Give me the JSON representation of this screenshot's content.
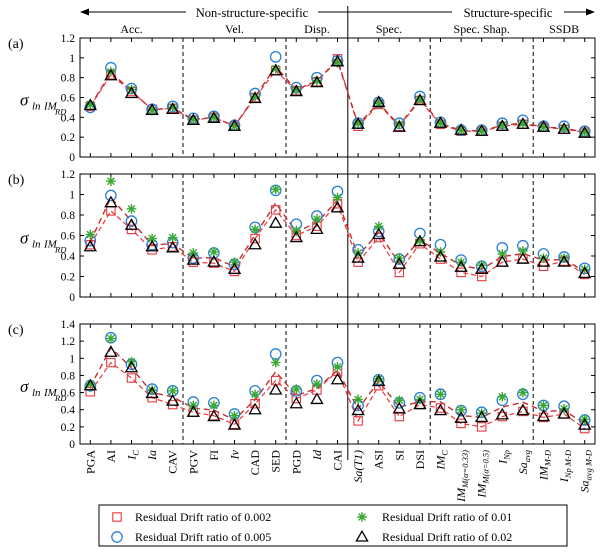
{
  "header": {
    "group_left": "Non-structure-specific",
    "group_right": "Structure-specific",
    "sections": [
      "Acc.",
      "Vel.",
      "Disp.",
      "Spec.",
      "Spec. Shap.",
      "SSDB"
    ]
  },
  "legend": {
    "items": [
      {
        "label": "Residual Drift ratio of 0.002",
        "marker": "square",
        "color": "#e8383d"
      },
      {
        "label": "Residual Drift ratio of 0.01",
        "marker": "star",
        "color": "#3aa832"
      },
      {
        "label": "Residual Drift ratio of 0.005",
        "marker": "circle",
        "color": "#2a7fd4"
      },
      {
        "label": "Residual Drift ratio of 0.02",
        "marker": "triangle",
        "color": "#000000"
      }
    ]
  },
  "chart_data": {
    "type": "line",
    "categories": [
      "PGA",
      "AI",
      "IC",
      "Ia",
      "CAV",
      "PGV",
      "FI",
      "Iv",
      "CAD",
      "SED",
      "PGD",
      "Id",
      "CAI",
      "Sa(T1)",
      "ASI",
      "SI",
      "DSI",
      "IMC",
      "IM_M(α=0.33)",
      "IM_M(α=0.5)",
      "INp",
      "Sa_avg",
      "IM_M-D",
      "INp_M-D",
      "Sa_avg_M-D"
    ],
    "panels": [
      {
        "label": "(a)",
        "ylim": [
          0,
          1.2
        ],
        "yticks": [
          "0",
          "0.2",
          "0.4",
          "0.6",
          "0.8",
          "1",
          "1.2"
        ],
        "series": [
          {
            "values": [
              0.51,
              0.83,
              0.66,
              0.48,
              0.49,
              0.37,
              0.4,
              0.31,
              0.6,
              0.87,
              0.67,
              0.76,
              0.99,
              0.31,
              0.53,
              0.31,
              0.57,
              0.33,
              0.26,
              0.26,
              0.31,
              0.33,
              0.3,
              0.28,
              0.25
            ]
          },
          {
            "values": [
              0.5,
              0.9,
              0.69,
              0.48,
              0.51,
              0.39,
              0.41,
              0.32,
              0.64,
              1.01,
              0.7,
              0.8,
              0.97,
              0.34,
              0.55,
              0.34,
              0.61,
              0.35,
              0.27,
              0.27,
              0.34,
              0.37,
              0.31,
              0.31,
              0.26
            ]
          },
          {
            "values": [
              0.53,
              0.86,
              0.68,
              0.47,
              0.5,
              0.38,
              0.4,
              0.31,
              0.61,
              0.89,
              0.68,
              0.77,
              0.95,
              0.34,
              0.54,
              0.33,
              0.58,
              0.34,
              0.27,
              0.26,
              0.32,
              0.34,
              0.3,
              0.29,
              0.25
            ]
          },
          {
            "values": [
              0.52,
              0.82,
              0.64,
              0.47,
              0.48,
              0.37,
              0.39,
              0.31,
              0.59,
              0.87,
              0.66,
              0.75,
              0.96,
              0.33,
              0.55,
              0.3,
              0.57,
              0.34,
              0.27,
              0.26,
              0.31,
              0.33,
              0.3,
              0.28,
              0.24
            ]
          }
        ]
      },
      {
        "label": "(b)",
        "ylim": [
          0,
          1.2
        ],
        "yticks": [
          "0",
          "0.2",
          "0.4",
          "0.6",
          "0.8",
          "1",
          "1.2"
        ],
        "series": [
          {
            "values": [
              0.51,
              0.84,
              0.66,
              0.46,
              0.49,
              0.34,
              0.33,
              0.25,
              0.57,
              0.85,
              0.6,
              0.69,
              0.91,
              0.34,
              0.58,
              0.24,
              0.52,
              0.37,
              0.24,
              0.2,
              0.34,
              0.37,
              0.3,
              0.35,
              0.22
            ]
          },
          {
            "values": [
              0.55,
              0.99,
              0.74,
              0.51,
              0.53,
              0.38,
              0.43,
              0.32,
              0.68,
              1.04,
              0.71,
              0.79,
              1.03,
              0.46,
              0.64,
              0.37,
              0.62,
              0.51,
              0.36,
              0.3,
              0.48,
              0.5,
              0.42,
              0.39,
              0.28
            ]
          },
          {
            "values": [
              0.61,
              1.13,
              0.86,
              0.57,
              0.58,
              0.43,
              0.44,
              0.34,
              0.66,
              1.05,
              0.65,
              0.76,
              0.97,
              0.43,
              0.69,
              0.38,
              0.55,
              0.44,
              0.34,
              0.31,
              0.42,
              0.45,
              0.38,
              0.38,
              0.27
            ]
          },
          {
            "values": [
              0.49,
              0.92,
              0.7,
              0.49,
              0.48,
              0.36,
              0.34,
              0.27,
              0.51,
              0.72,
              0.58,
              0.66,
              0.87,
              0.38,
              0.61,
              0.32,
              0.54,
              0.39,
              0.29,
              0.27,
              0.34,
              0.37,
              0.34,
              0.34,
              0.23
            ]
          }
        ]
      },
      {
        "label": "(c)",
        "ylim": [
          0,
          1.4
        ],
        "yticks": [
          "0",
          "0.2",
          "0.4",
          "0.6",
          "0.8",
          "1",
          "1.2",
          "1.4"
        ],
        "series": [
          {
            "values": [
              0.61,
              0.95,
              0.77,
              0.54,
              0.46,
              0.37,
              0.33,
              0.23,
              0.47,
              0.74,
              0.53,
              0.63,
              0.85,
              0.27,
              0.68,
              0.32,
              0.46,
              0.42,
              0.24,
              0.2,
              0.32,
              0.38,
              0.31,
              0.35,
              0.18
            ]
          },
          {
            "values": [
              0.68,
              1.24,
              0.93,
              0.64,
              0.62,
              0.49,
              0.48,
              0.35,
              0.62,
              1.05,
              0.62,
              0.74,
              0.95,
              0.45,
              0.75,
              0.48,
              0.54,
              0.58,
              0.39,
              0.37,
              0.51,
              0.58,
              0.45,
              0.44,
              0.28
            ]
          },
          {
            "values": [
              0.7,
              1.23,
              0.96,
              0.63,
              0.62,
              0.45,
              0.45,
              0.33,
              0.58,
              0.95,
              0.64,
              0.7,
              0.9,
              0.52,
              0.76,
              0.51,
              0.52,
              0.58,
              0.4,
              0.36,
              0.55,
              0.6,
              0.45,
              0.41,
              0.29
            ]
          },
          {
            "values": [
              0.68,
              1.07,
              0.89,
              0.59,
              0.5,
              0.37,
              0.32,
              0.22,
              0.4,
              0.63,
              0.47,
              0.52,
              0.75,
              0.39,
              0.73,
              0.41,
              0.46,
              0.39,
              0.3,
              0.31,
              0.34,
              0.39,
              0.32,
              0.35,
              0.22
            ]
          }
        ]
      }
    ]
  }
}
